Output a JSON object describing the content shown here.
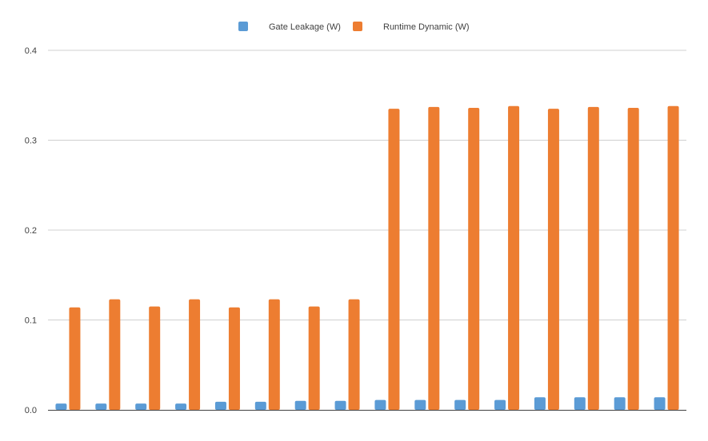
{
  "chart_data": {
    "type": "bar",
    "title": "",
    "xlabel": "",
    "ylabel": "",
    "ylim": [
      0,
      0.4
    ],
    "yticks": [
      "0.0",
      "0.1",
      "0.2",
      "0.3",
      "0.4"
    ],
    "grid": true,
    "legend_position": "top-center",
    "categories": [
      "",
      "",
      "",
      "",
      "",
      "",
      "",
      "",
      "",
      "",
      "",
      "",
      "",
      "",
      "",
      ""
    ],
    "series": [
      {
        "name": "Gate Leakage (W)",
        "color": "#5B9BD5",
        "values": [
          0.007,
          0.007,
          0.007,
          0.007,
          0.009,
          0.009,
          0.01,
          0.01,
          0.011,
          0.011,
          0.011,
          0.011,
          0.014,
          0.014,
          0.014,
          0.014
        ]
      },
      {
        "name": "Runtime Dynamic (W)",
        "color": "#ED7D31",
        "values": [
          0.114,
          0.123,
          0.115,
          0.123,
          0.114,
          0.123,
          0.115,
          0.123,
          0.335,
          0.337,
          0.336,
          0.338,
          0.335,
          0.337,
          0.336,
          0.338
        ]
      }
    ]
  }
}
